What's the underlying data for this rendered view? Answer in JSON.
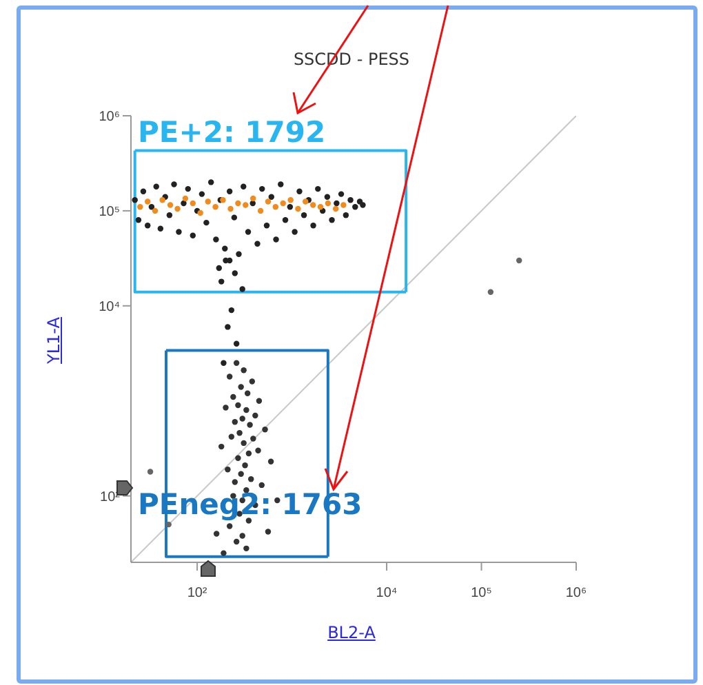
{
  "chart_data": {
    "type": "scatter",
    "title": "SSCDD - PESS",
    "xlabel": "BL2-A",
    "ylabel": "YL1-A",
    "log": "xy",
    "marker": "circle",
    "xlim": [
      20,
      1000000
    ],
    "ylim": [
      20,
      1000000
    ],
    "xticks": [
      {
        "value": 100,
        "label": "10²"
      },
      {
        "value": 10000,
        "label": "10⁴"
      },
      {
        "value": 100000,
        "label": "10⁵"
      },
      {
        "value": 1000000,
        "label": "10⁶"
      }
    ],
    "yticks": [
      {
        "value": 100,
        "label": "10²"
      },
      {
        "value": 10000,
        "label": "10⁴"
      },
      {
        "value": 100000,
        "label": "10⁵"
      },
      {
        "value": 1000000,
        "label": "10⁶"
      }
    ],
    "annotations": [
      "PE+2: 1792",
      "PEneg2: 1763"
    ],
    "series": [
      {
        "type": "line",
        "marker": "none",
        "color": "#c8c8c8",
        "x": [
          20,
          1000000
        ],
        "values": [
          20,
          1000000
        ]
      },
      {
        "color": "#222222",
        "x": [
          22,
          24,
          27,
          30,
          33,
          37,
          41,
          46,
          51,
          57,
          64,
          72,
          80,
          90,
          100,
          112,
          125,
          140,
          158,
          176,
          196,
          220,
          246,
          275,
          308,
          345,
          386,
          432,
          484,
          542,
          607,
          680,
          761,
          852,
          955,
          1070,
          1200,
          1340,
          1500,
          1680,
          1880,
          2110,
          2360,
          2640,
          2960,
          3310,
          3710,
          4150,
          4650,
          5200,
          5600,
          200,
          250,
          180,
          300,
          230,
          210,
          260,
          190,
          220,
          170
        ],
        "values": [
          130000,
          80000,
          160000,
          70000,
          110000,
          180000,
          65000,
          140000,
          90000,
          190000,
          60000,
          120000,
          170000,
          55000,
          100000,
          150000,
          75000,
          200000,
          50000,
          130000,
          40000,
          160000,
          85000,
          35000,
          180000,
          60000,
          120000,
          45000,
          170000,
          70000,
          140000,
          50000,
          190000,
          80000,
          110000,
          60000,
          160000,
          90000,
          130000,
          70000,
          170000,
          100000,
          140000,
          80000,
          120000,
          150000,
          90000,
          130000,
          110000,
          125000,
          115000,
          30000,
          22000,
          18000,
          15000,
          9000,
          6000,
          4000,
          2500,
          30000,
          25000
        ]
      },
      {
        "color": "#f08c1e",
        "x": [
          25,
          30,
          36,
          43,
          52,
          62,
          75,
          90,
          108,
          130,
          156,
          187,
          225,
          270,
          324,
          389,
          467,
          560,
          672,
          806,
          968,
          1160,
          1390,
          1670,
          2000,
          2400,
          2900,
          3500
        ],
        "values": [
          110000,
          125000,
          100000,
          130000,
          115000,
          105000,
          135000,
          120000,
          95000,
          125000,
          110000,
          130000,
          105000,
          120000,
          115000,
          135000,
          100000,
          125000,
          110000,
          120000,
          130000,
          105000,
          125000,
          115000,
          110000,
          120000,
          105000,
          115000
        ]
      },
      {
        "color": "#333333",
        "x": [
          260,
          310,
          220,
          380,
          290,
          340,
          240,
          450,
          270,
          200,
          330,
          410,
          300,
          250,
          360,
          520,
          280,
          230,
          390,
          310,
          180,
          440,
          350,
          270,
          600,
          320,
          210,
          290,
          370,
          250,
          480,
          330,
          240,
          300,
          410,
          160,
          280,
          350,
          220,
          560,
          300,
          260,
          700,
          330,
          190
        ],
        "values": [
          2500,
          2100,
          1800,
          1600,
          1400,
          1200,
          1100,
          1000,
          900,
          850,
          800,
          700,
          650,
          600,
          560,
          500,
          460,
          420,
          400,
          360,
          330,
          300,
          280,
          250,
          230,
          210,
          190,
          170,
          150,
          140,
          130,
          115,
          100,
          90,
          80,
          40,
          65,
          55,
          48,
          42,
          38,
          33,
          90,
          28,
          25
        ]
      },
      {
        "color": "#666666",
        "x": [
          250000,
          125000,
          32,
          50
        ],
        "values": [
          30000,
          14000,
          180,
          50
        ]
      },
      {
        "type": "line",
        "marker": "none",
        "color": "#29b6f0",
        "x": [
          22,
          22,
          16000
        ],
        "values": [
          430000,
          14000,
          14000
        ]
      },
      {
        "type": "line",
        "marker": "none",
        "color": "#29b6f0",
        "x": [
          22,
          16000,
          16000
        ],
        "values": [
          430000,
          430000,
          14000
        ]
      },
      {
        "type": "line",
        "marker": "none",
        "color": "#1a78c2",
        "x": [
          47,
          47,
          2400
        ],
        "values": [
          3400,
          23,
          23
        ]
      },
      {
        "type": "line",
        "marker": "none",
        "color": "#1a78c2",
        "x": [
          47,
          2400,
          2400
        ],
        "values": [
          3400,
          3400,
          23
        ]
      }
    ]
  }
}
